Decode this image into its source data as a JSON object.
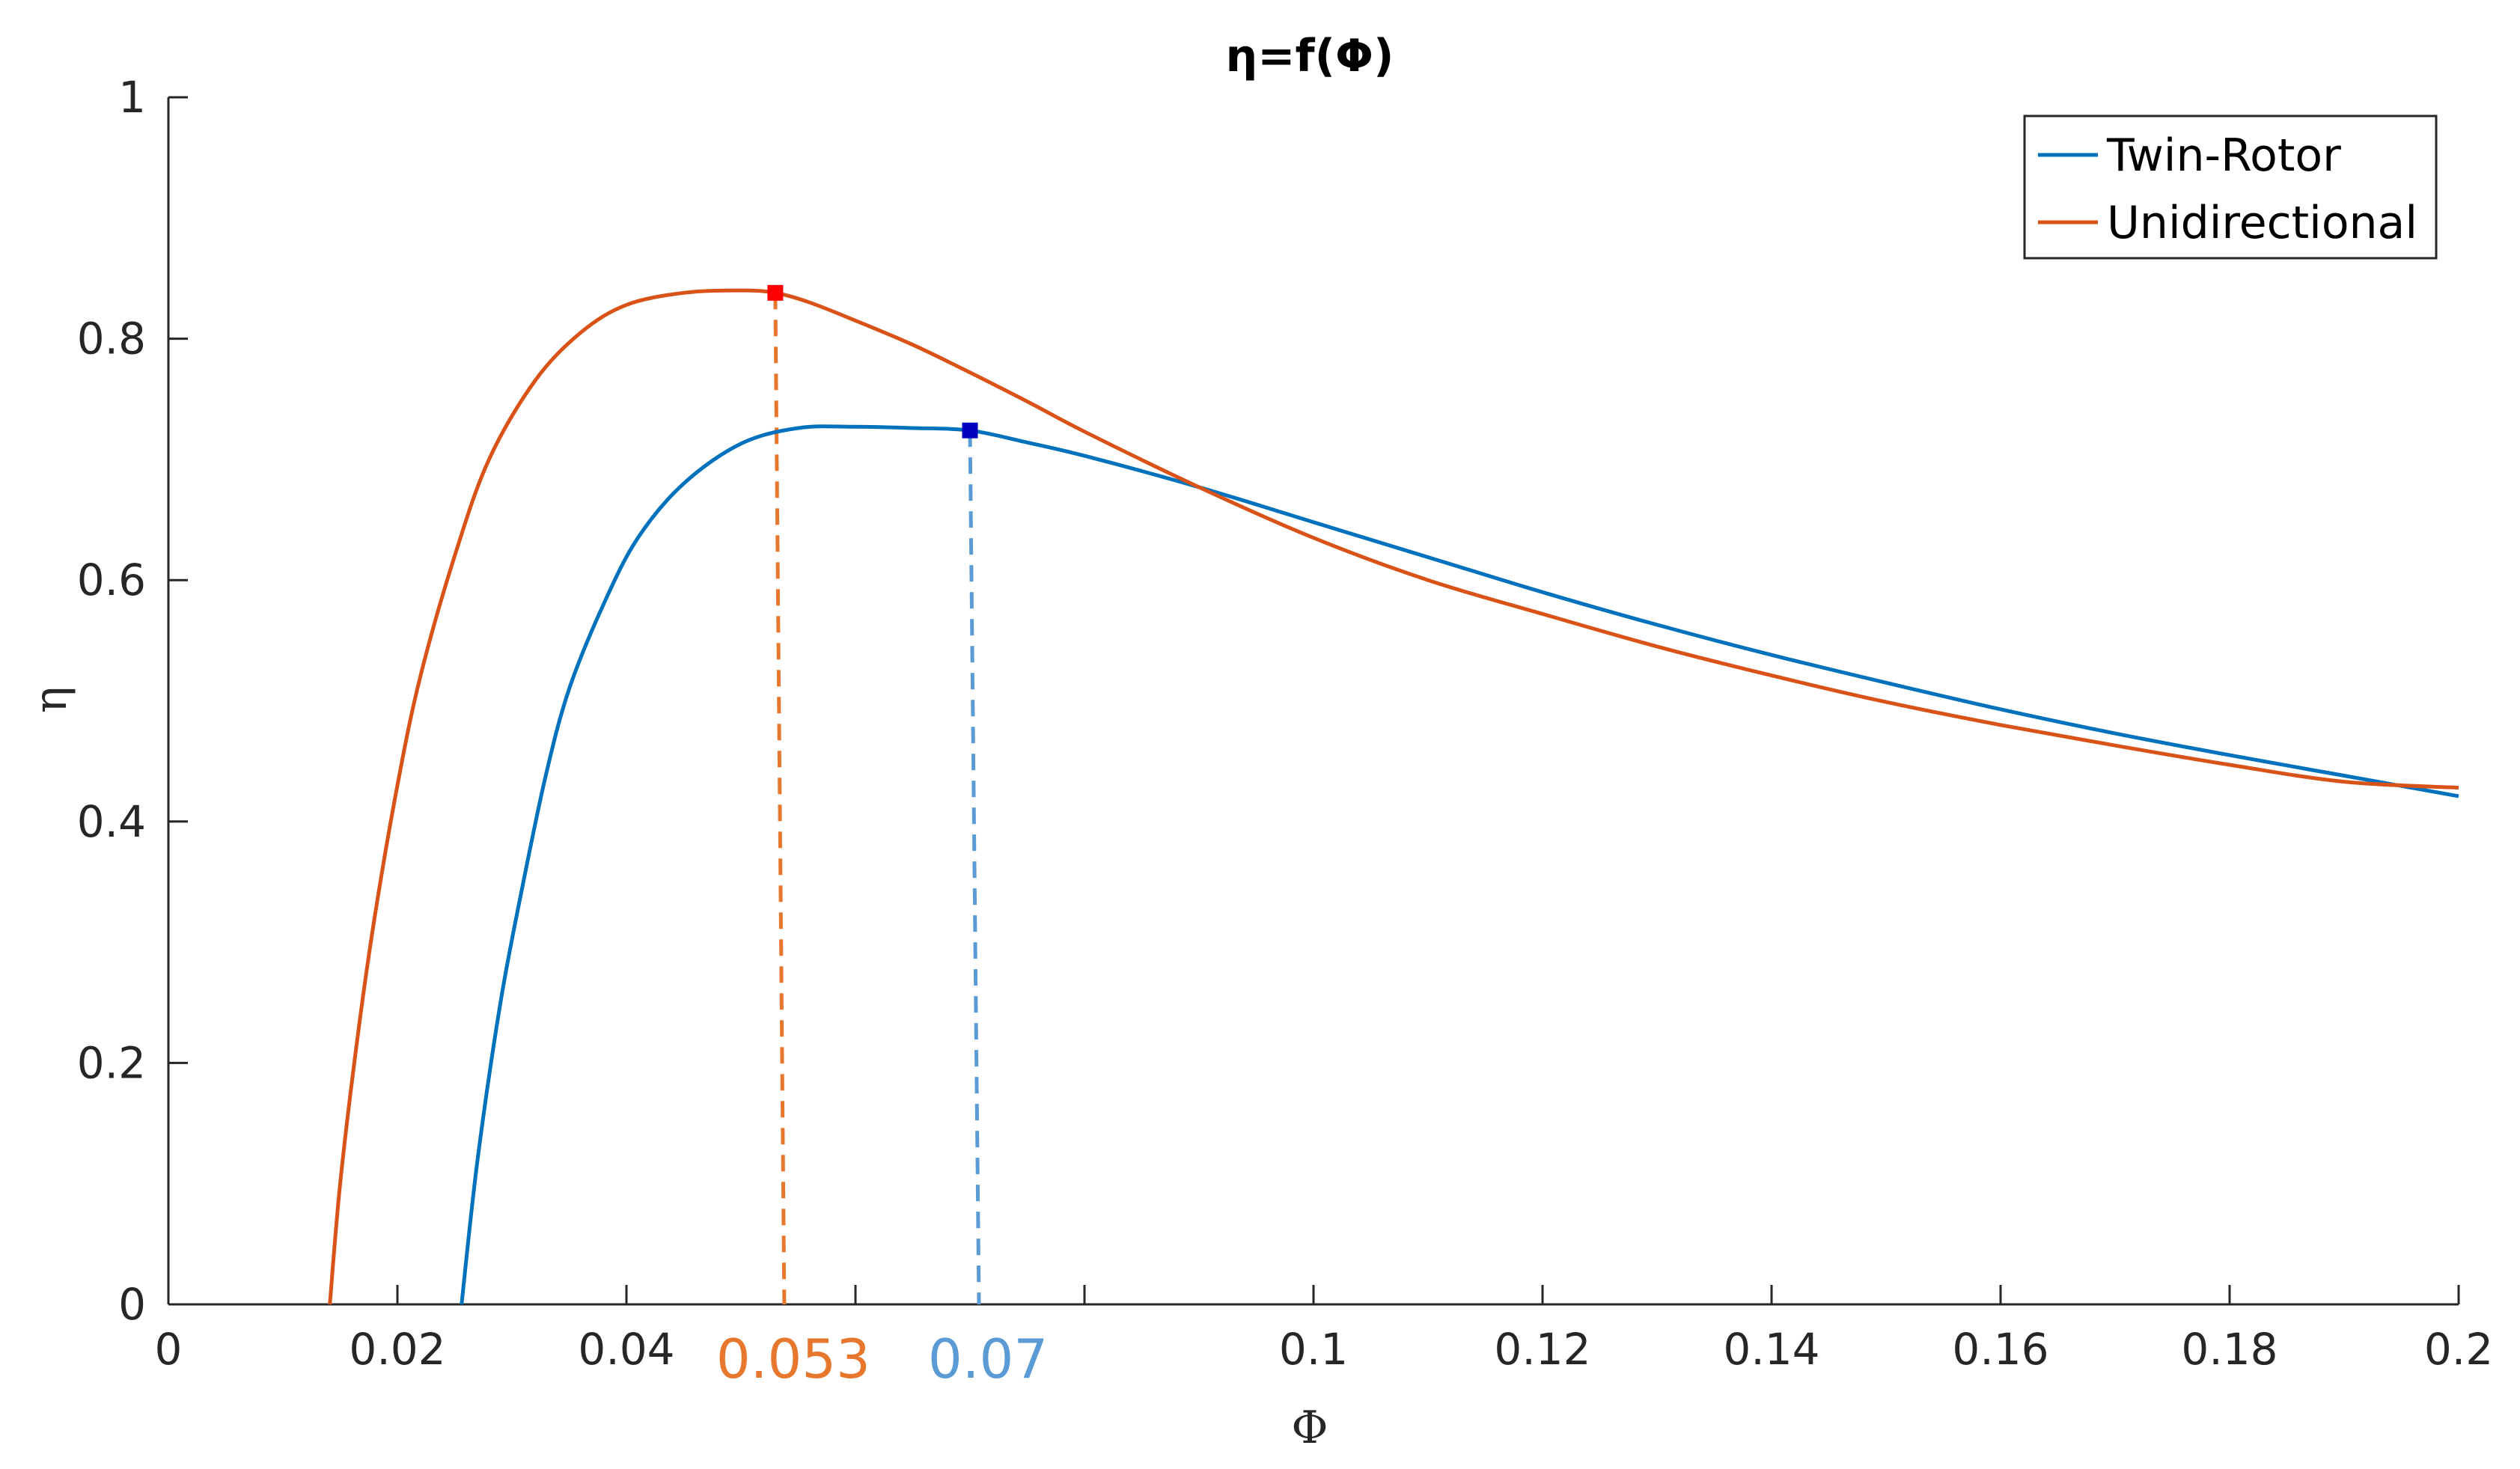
{
  "chart_data": {
    "type": "line",
    "title": "η=f(Φ)",
    "xlabel": "Φ",
    "ylabel": "η",
    "xlim": [
      0,
      0.2
    ],
    "ylim": [
      0,
      1
    ],
    "x_ticks": [
      {
        "value": 0,
        "label": "0"
      },
      {
        "value": 0.02,
        "label": "0.02"
      },
      {
        "value": 0.04,
        "label": "0.04"
      },
      {
        "value": 0.06,
        "label": ""
      },
      {
        "value": 0.08,
        "label": ""
      },
      {
        "value": 0.1,
        "label": "0.1"
      },
      {
        "value": 0.12,
        "label": "0.12"
      },
      {
        "value": 0.14,
        "label": "0.14"
      },
      {
        "value": 0.16,
        "label": "0.16"
      },
      {
        "value": 0.18,
        "label": "0.18"
      },
      {
        "value": 0.2,
        "label": "0.2"
      }
    ],
    "y_ticks": [
      {
        "value": 0,
        "label": "0"
      },
      {
        "value": 0.2,
        "label": "0.2"
      },
      {
        "value": 0.4,
        "label": "0.4"
      },
      {
        "value": 0.6,
        "label": "0.6"
      },
      {
        "value": 0.8,
        "label": "0.8"
      },
      {
        "value": 1,
        "label": "1"
      }
    ],
    "grid": false,
    "legend_position": "top-right",
    "series": [
      {
        "name": "Twin-Rotor",
        "color": "#0072BD",
        "x": [
          0.0256,
          0.027,
          0.029,
          0.031,
          0.033,
          0.035,
          0.038,
          0.041,
          0.045,
          0.05,
          0.055,
          0.06,
          0.065,
          0.07,
          0.075,
          0.08,
          0.09,
          0.1,
          0.11,
          0.12,
          0.13,
          0.14,
          0.15,
          0.16,
          0.17,
          0.18,
          0.19,
          0.2
        ],
        "y": [
          0.0,
          0.12,
          0.25,
          0.35,
          0.44,
          0.51,
          0.58,
          0.635,
          0.68,
          0.713,
          0.726,
          0.727,
          0.726,
          0.724,
          0.714,
          0.703,
          0.677,
          0.648,
          0.619,
          0.59,
          0.563,
          0.538,
          0.515,
          0.493,
          0.473,
          0.455,
          0.438,
          0.421
        ]
      },
      {
        "name": "Unidirectional",
        "color": "#D95319",
        "x": [
          0.0141,
          0.015,
          0.0165,
          0.018,
          0.02,
          0.022,
          0.025,
          0.028,
          0.032,
          0.036,
          0.04,
          0.045,
          0.05,
          0.053,
          0.056,
          0.06,
          0.065,
          0.07,
          0.075,
          0.08,
          0.09,
          0.1,
          0.11,
          0.12,
          0.13,
          0.14,
          0.15,
          0.16,
          0.17,
          0.18,
          0.19,
          0.2
        ],
        "y": [
          0.0,
          0.1,
          0.22,
          0.32,
          0.43,
          0.52,
          0.62,
          0.7,
          0.765,
          0.805,
          0.828,
          0.838,
          0.84,
          0.838,
          0.83,
          0.815,
          0.795,
          0.772,
          0.748,
          0.723,
          0.677,
          0.635,
          0.6,
          0.572,
          0.545,
          0.521,
          0.499,
          0.48,
          0.463,
          0.447,
          0.433,
          0.428
        ]
      }
    ],
    "markers": [
      {
        "series": "Unidirectional",
        "x": 0.053,
        "y": 0.838,
        "color": "#FF0000"
      },
      {
        "series": "Twin-Rotor",
        "x": 0.07,
        "y": 0.724,
        "color": "#0000C0"
      }
    ],
    "annotations": [
      {
        "text": "0.053",
        "x": 0.053,
        "color": "#E8772E"
      },
      {
        "text": "0.07",
        "x": 0.07,
        "color": "#5B9BD5"
      }
    ],
    "dashed_drops": [
      {
        "x": 0.053,
        "y_top": 0.838,
        "color": "#E8772E"
      },
      {
        "x": 0.07,
        "y_top": 0.724,
        "color": "#5B9BD5"
      }
    ]
  }
}
